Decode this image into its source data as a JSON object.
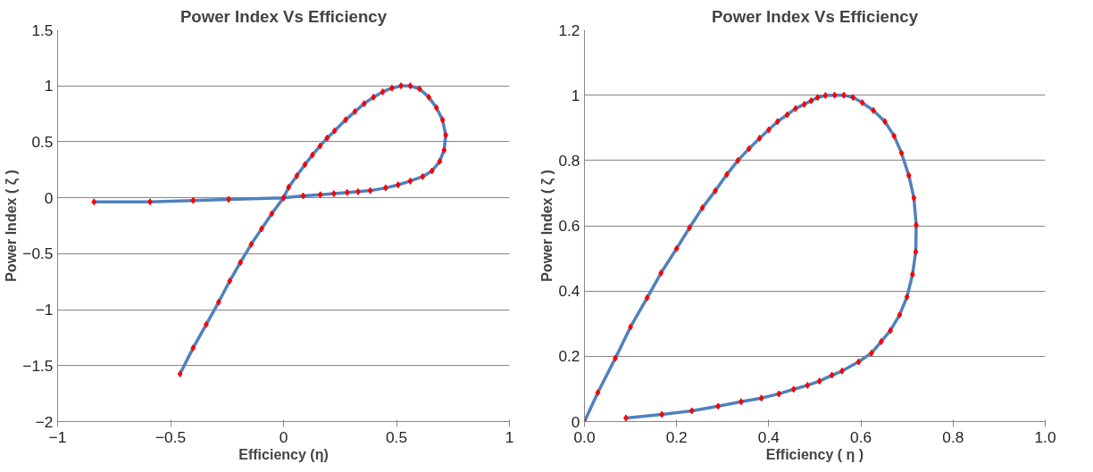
{
  "chart_data": [
    {
      "type": "line",
      "title": "Power Index Vs Efficiency",
      "xlabel": "Efficiency (η)",
      "ylabel": "Power Index ( ζ )",
      "xlim": [
        -1,
        1
      ],
      "ylim": [
        -2,
        1.5
      ],
      "xticks": [
        -1,
        -0.5,
        0,
        0.5,
        1
      ],
      "yticks": [
        -2,
        -1.5,
        -1,
        -0.5,
        0,
        0.5,
        1,
        1.5
      ],
      "grid": "y",
      "series": [
        {
          "color": "#4f81bd",
          "marker": "none",
          "x": [
            -0.839,
            -0.591,
            -0.4,
            -0.243,
            0,
            0.087,
            0.163,
            0.223,
            0.282,
            0.33,
            0.384,
            0.452,
            0.507,
            0.561,
            0.616,
            0.657,
            0.691,
            0.711,
            0.718,
            0.704,
            0.677,
            0.643,
            0.602,
            0.561,
            0.52,
            0.48,
            0.439,
            0.398,
            0.357,
            0.316,
            0.275,
            0.226,
            0.193,
            0.162,
            0.128,
            0.095,
            0.059,
            0.023,
            0,
            -0.052,
            -0.097,
            -0.143,
            -0.191,
            -0.238,
            -0.287,
            -0.342,
            -0.4,
            -0.458
          ],
          "values": [
            -0.037,
            -0.037,
            -0.024,
            -0.014,
            0,
            0.017,
            0.027,
            0.037,
            0.047,
            0.054,
            0.064,
            0.088,
            0.115,
            0.149,
            0.189,
            0.24,
            0.324,
            0.426,
            0.561,
            0.696,
            0.804,
            0.899,
            0.973,
            1.0,
            1.0,
            0.98,
            0.946,
            0.899,
            0.841,
            0.77,
            0.696,
            0.598,
            0.534,
            0.463,
            0.382,
            0.297,
            0.196,
            0.095,
            0,
            -0.142,
            -0.277,
            -0.416,
            -0.578,
            -0.743,
            -0.932,
            -1.132,
            -1.341,
            -1.574
          ]
        },
        {
          "type": "scatter",
          "color": "#ff0000",
          "marker": "diamond",
          "x": [
            -0.839,
            -0.591,
            -0.4,
            -0.243,
            0,
            0.087,
            0.163,
            0.223,
            0.282,
            0.33,
            0.384,
            0.452,
            0.507,
            0.561,
            0.616,
            0.657,
            0.691,
            0.711,
            0.718,
            0.704,
            0.677,
            0.643,
            0.602,
            0.561,
            0.52,
            0.48,
            0.439,
            0.398,
            0.357,
            0.316,
            0.275,
            0.226,
            0.193,
            0.162,
            0.128,
            0.095,
            0.059,
            0.023,
            0,
            -0.052,
            -0.097,
            -0.143,
            -0.191,
            -0.238,
            -0.287,
            -0.342,
            -0.4,
            -0.458
          ],
          "values": [
            -0.037,
            -0.037,
            -0.024,
            -0.014,
            0,
            0.017,
            0.027,
            0.037,
            0.047,
            0.054,
            0.064,
            0.088,
            0.115,
            0.149,
            0.189,
            0.24,
            0.324,
            0.426,
            0.561,
            0.696,
            0.804,
            0.899,
            0.973,
            1.0,
            1.0,
            0.98,
            0.946,
            0.899,
            0.841,
            0.77,
            0.696,
            0.598,
            0.534,
            0.463,
            0.382,
            0.297,
            0.196,
            0.095,
            0,
            -0.142,
            -0.277,
            -0.416,
            -0.578,
            -0.743,
            -0.932,
            -1.132,
            -1.341,
            -1.574
          ]
        }
      ]
    },
    {
      "type": "line",
      "title": "Power Index Vs Efficiency",
      "xlabel": "Efficiency ( η )",
      "ylabel": "Power Index ( ζ )",
      "xlim": [
        0,
        1
      ],
      "ylim": [
        0,
        1.2
      ],
      "xticks": [
        {
          "value": 0,
          "label": "0.0"
        },
        0.2,
        0.4,
        0.6,
        0.8,
        {
          "value": 1,
          "label": "1.0"
        }
      ],
      "yticks": [
        0,
        0.2,
        0.4,
        0.6,
        0.8,
        1,
        1.2
      ],
      "grid": "y",
      "series": [
        {
          "color": "#4f81bd",
          "marker": "none",
          "x": [
            0.09,
            0.168,
            0.233,
            0.29,
            0.34,
            0.384,
            0.422,
            0.454,
            0.484,
            0.51,
            0.537,
            0.559,
            0.595,
            0.623,
            0.644,
            0.664,
            0.684,
            0.7,
            0.712,
            0.719,
            0.72,
            0.715,
            0.704,
            0.688,
            0.672,
            0.652,
            0.627,
            0.603,
            0.583,
            0.563,
            0.543,
            0.523,
            0.506,
            0.492,
            0.477,
            0.458,
            0.44,
            0.419,
            0.4,
            0.38,
            0.357,
            0.333,
            0.309,
            0.284,
            0.256,
            0.228,
            0.2,
            0.166,
            0.136,
            0.1,
            0.067,
            0.029,
            0
          ],
          "values": [
            0.011,
            0.022,
            0.033,
            0.047,
            0.061,
            0.072,
            0.085,
            0.099,
            0.111,
            0.124,
            0.142,
            0.155,
            0.183,
            0.21,
            0.245,
            0.279,
            0.327,
            0.382,
            0.451,
            0.52,
            0.602,
            0.685,
            0.754,
            0.823,
            0.875,
            0.919,
            0.953,
            0.977,
            0.993,
            1.0,
            1.0,
            0.999,
            0.993,
            0.983,
            0.972,
            0.959,
            0.94,
            0.919,
            0.894,
            0.868,
            0.836,
            0.8,
            0.757,
            0.707,
            0.655,
            0.594,
            0.53,
            0.455,
            0.379,
            0.29,
            0.194,
            0.089,
            0
          ]
        },
        {
          "type": "scatter",
          "color": "#ff0000",
          "marker": "diamond",
          "x": [
            0,
            0.09,
            0.168,
            0.233,
            0.29,
            0.34,
            0.384,
            0.422,
            0.454,
            0.484,
            0.51,
            0.537,
            0.559,
            0.595,
            0.623,
            0.644,
            0.664,
            0.684,
            0.7,
            0.712,
            0.719,
            0.72,
            0.715,
            0.704,
            0.688,
            0.672,
            0.652,
            0.627,
            0.603,
            0.583,
            0.563,
            0.543,
            0.523,
            0.506,
            0.492,
            0.477,
            0.458,
            0.44,
            0.419,
            0.4,
            0.38,
            0.357,
            0.333,
            0.309,
            0.284,
            0.256,
            0.228,
            0.2,
            0.166,
            0.136,
            0.1,
            0.067,
            0.029,
            0
          ],
          "values": [
            0,
            0.011,
            0.022,
            0.033,
            0.047,
            0.061,
            0.072,
            0.085,
            0.099,
            0.111,
            0.124,
            0.142,
            0.155,
            0.183,
            0.21,
            0.245,
            0.279,
            0.327,
            0.382,
            0.451,
            0.52,
            0.602,
            0.685,
            0.754,
            0.823,
            0.875,
            0.919,
            0.953,
            0.977,
            0.993,
            1.0,
            1.0,
            0.999,
            0.993,
            0.983,
            0.972,
            0.959,
            0.94,
            0.919,
            0.894,
            0.868,
            0.836,
            0.8,
            0.757,
            0.707,
            0.655,
            0.594,
            0.53,
            0.455,
            0.379,
            0.29,
            0.194,
            0.089,
            0
          ]
        }
      ]
    }
  ]
}
